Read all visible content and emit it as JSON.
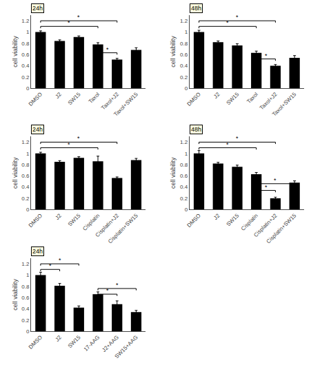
{
  "chart_data": [
    {
      "type": "bar",
      "title": "24h",
      "ylabel": "cell viability",
      "color": "#000000",
      "grid": false,
      "categories": [
        "DMSO",
        "J2",
        "SW15",
        "Taxol",
        "Taxol+J2",
        "Taxol+SW15"
      ],
      "values": [
        1.0,
        0.84,
        0.91,
        0.78,
        0.51,
        0.68
      ],
      "errors": [
        0.02,
        0.02,
        0.02,
        0.03,
        0.02,
        0.04
      ],
      "ylim": [
        0,
        1.3
      ],
      "yticks": [
        0,
        0.2,
        0.4,
        0.6,
        0.8,
        1.0,
        1.2
      ],
      "brackets": [
        {
          "from": "DMSO",
          "to": "Taxol",
          "y": 1.1,
          "label": "*"
        },
        {
          "from": "DMSO",
          "to": "Taxol+J2",
          "y": 1.2,
          "label": "*"
        },
        {
          "from": "Taxol",
          "to": "Taxol+J2",
          "y": 0.63,
          "label": "*"
        }
      ]
    },
    {
      "type": "bar",
      "title": "48h",
      "ylabel": "cell viability",
      "color": "#000000",
      "grid": false,
      "categories": [
        "DMSO",
        "J2",
        "SW15",
        "Taxol",
        "Taxol+J2",
        "Taxol+SW15"
      ],
      "values": [
        1.0,
        0.82,
        0.76,
        0.63,
        0.4,
        0.54
      ],
      "errors": [
        0.03,
        0.02,
        0.03,
        0.03,
        0.02,
        0.04
      ],
      "ylim": [
        0,
        1.3
      ],
      "yticks": [
        0,
        0.2,
        0.4,
        0.6,
        0.8,
        1.0,
        1.2
      ],
      "brackets": [
        {
          "from": "DMSO",
          "to": "Taxol",
          "y": 1.1,
          "label": "*"
        },
        {
          "from": "DMSO",
          "to": "Taxol+J2",
          "y": 1.2,
          "label": "*"
        },
        {
          "from": "Taxol",
          "to": "Taxol+J2",
          "y": 0.52,
          "label": "*"
        }
      ]
    },
    {
      "type": "bar",
      "title": "24h",
      "ylabel": "cell viability",
      "color": "#000000",
      "grid": false,
      "categories": [
        "DMSO",
        "J2",
        "SW15",
        "Cisplatin",
        "Cisplatin+J2",
        "Cisplatin+SW15"
      ],
      "values": [
        1.0,
        0.85,
        0.92,
        0.86,
        0.56,
        0.88
      ],
      "errors": [
        0.02,
        0.02,
        0.02,
        0.09,
        0.02,
        0.03
      ],
      "ylim": [
        0,
        1.3
      ],
      "yticks": [
        0,
        0.2,
        0.4,
        0.6,
        0.8,
        1.0,
        1.2
      ],
      "brackets": [
        {
          "from": "DMSO",
          "to": "Cisplatin",
          "y": 1.1,
          "label": "*"
        },
        {
          "from": "DMSO",
          "to": "Cisplatin+J2",
          "y": 1.2,
          "label": "*"
        }
      ]
    },
    {
      "type": "bar",
      "title": "48h",
      "ylabel": "cell viability",
      "color": "#000000",
      "grid": false,
      "categories": [
        "DMSO",
        "J2",
        "SW15",
        "Cisplatin",
        "Cisplatin+J2",
        "Cisplatin+SW15"
      ],
      "values": [
        1.0,
        0.82,
        0.76,
        0.63,
        0.2,
        0.48
      ],
      "errors": [
        0.05,
        0.02,
        0.03,
        0.03,
        0.02,
        0.03
      ],
      "ylim": [
        0,
        1.3
      ],
      "yticks": [
        0,
        0.2,
        0.4,
        0.6,
        0.8,
        1.0,
        1.2
      ],
      "brackets": [
        {
          "from": "DMSO",
          "to": "Cisplatin",
          "y": 1.1,
          "label": "*"
        },
        {
          "from": "DMSO",
          "to": "Cisplatin+J2",
          "y": 1.2,
          "label": "*"
        },
        {
          "from": "Cisplatin",
          "to": "Cisplatin+J2",
          "y": 0.34,
          "label": "*"
        },
        {
          "from": "Cisplatin",
          "to": "Cisplatin+SW15",
          "y": 0.46,
          "label": "*"
        }
      ]
    },
    {
      "type": "bar",
      "title": "24h",
      "ylabel": "cell viability",
      "color": "#000000",
      "grid": false,
      "categories": [
        "DMSO",
        "J2",
        "SW15",
        "17-AAG",
        "J2+AAG",
        "SW15+AAG"
      ],
      "values": [
        1.0,
        0.81,
        0.42,
        0.66,
        0.48,
        0.34
      ],
      "errors": [
        0.05,
        0.04,
        0.03,
        0.04,
        0.06,
        0.03
      ],
      "ylim": [
        0,
        1.3
      ],
      "yticks": [
        0,
        0.2,
        0.4,
        0.6,
        0.8,
        1.0,
        1.2
      ],
      "brackets": [
        {
          "from": "DMSO",
          "to": "J2",
          "y": 1.1,
          "label": "*"
        },
        {
          "from": "DMSO",
          "to": "SW15",
          "y": 1.2,
          "label": "*"
        },
        {
          "from": "17-AAG",
          "to": "J2+AAG",
          "y": 0.66,
          "label": "*"
        },
        {
          "from": "17-AAG",
          "to": "SW15+AAG",
          "y": 0.76,
          "label": "*"
        }
      ]
    }
  ]
}
